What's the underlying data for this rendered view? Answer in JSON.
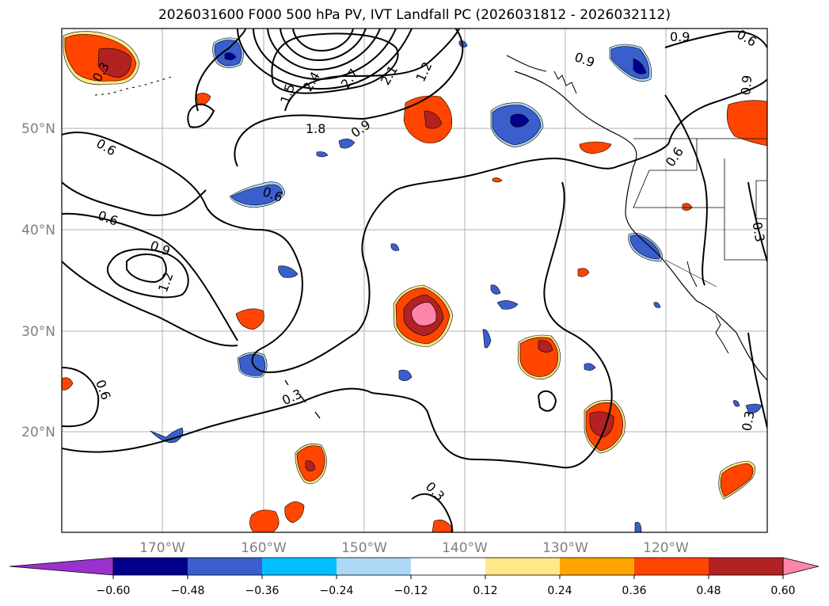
{
  "title": "2026031600 F000 500 hPa PV, IVT Landfall PC (2026031812 - 2026032112)",
  "axes": {
    "lat_labels": [
      "50°N",
      "40°N",
      "30°N",
      "20°N"
    ],
    "lon_labels": [
      "170°W",
      "160°W",
      "150°W",
      "140°W",
      "130°W",
      "120°W"
    ]
  },
  "colorbar": {
    "ticks": [
      "−0.60",
      "−0.48",
      "−0.36",
      "−0.24",
      "−0.12",
      "0.12",
      "0.24",
      "0.36",
      "0.48",
      "0.60"
    ],
    "colors": [
      "#9932cc",
      "#00008b",
      "#3a5fcd",
      "#00bfff",
      "#add8f7",
      "#ffffff",
      "#ffe88a",
      "#ffa500",
      "#ff4500",
      "#b22222",
      "#ff85a8"
    ]
  },
  "contour_labels": [
    "0.9",
    "0.6",
    "0.9",
    "0.3",
    "1.5",
    "2.4",
    "2.7",
    "2.1",
    "1.2",
    "1.8",
    "0.9",
    "0.6",
    "0.6",
    "0.6",
    "0.9",
    "1.2",
    "0.6",
    "0.3",
    "0.3",
    "0.3",
    "0.9",
    "0.6",
    "0.3"
  ]
}
